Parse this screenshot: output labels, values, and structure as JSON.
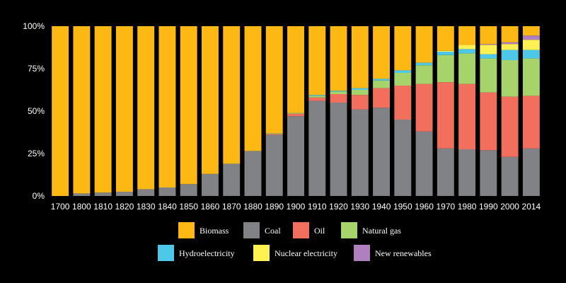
{
  "chart_data": {
    "type": "bar",
    "stacked": true,
    "categories": [
      "1700",
      "1800",
      "1810",
      "1820",
      "1830",
      "1840",
      "1850",
      "1860",
      "1870",
      "1880",
      "1890",
      "1900",
      "1910",
      "1920",
      "1930",
      "1940",
      "1950",
      "1960",
      "1970",
      "1980",
      "1990",
      "2000",
      "2014"
    ],
    "ylim": [
      0,
      100
    ],
    "yticks": [
      0,
      25,
      50,
      75,
      100
    ],
    "ytick_labels": [
      "0%",
      "25%",
      "50%",
      "75%",
      "100%"
    ],
    "legend_position": "bottom",
    "series": [
      {
        "name": "Coal",
        "color": "#808285",
        "values": [
          0,
          1.5,
          2,
          2.5,
          4,
          5,
          7,
          13,
          19,
          26.5,
          36,
          47,
          56,
          55,
          51,
          52,
          45,
          38,
          28,
          27.5,
          27,
          23,
          28
        ]
      },
      {
        "name": "Oil",
        "color": "#F26E5D",
        "values": [
          0,
          0,
          0,
          0,
          0,
          0,
          0,
          0,
          0,
          0,
          0.5,
          1.5,
          2,
          5,
          8.5,
          11.5,
          20,
          28,
          39,
          38.5,
          34,
          35.5,
          31
        ]
      },
      {
        "name": "Natural gas",
        "color": "#A6D36A",
        "values": [
          0,
          0,
          0,
          0,
          0,
          0,
          0,
          0,
          0,
          0,
          0.5,
          0.5,
          1,
          1.5,
          3,
          4.5,
          7.5,
          11,
          16,
          18,
          20,
          21.5,
          22
        ]
      },
      {
        "name": "Hydroelectricity",
        "color": "#4DC8E8",
        "values": [
          0,
          0,
          0,
          0,
          0,
          0,
          0,
          0,
          0,
          0,
          0,
          0,
          0.5,
          0.5,
          1,
          1,
          1.5,
          1.5,
          2,
          2.5,
          2.5,
          6,
          5
        ]
      },
      {
        "name": "Nuclear electricity",
        "color": "#FFF151",
        "values": [
          0,
          0,
          0,
          0,
          0,
          0,
          0,
          0,
          0,
          0,
          0,
          0,
          0,
          0,
          0,
          0,
          0,
          0,
          0.5,
          2.5,
          5.5,
          3.5,
          6
        ]
      },
      {
        "name": "New renewables",
        "color": "#B07FBE",
        "values": [
          0,
          0,
          0,
          0,
          0,
          0,
          0,
          0,
          0,
          0,
          0,
          0,
          0,
          0,
          0,
          0,
          0,
          0,
          0,
          0,
          0.5,
          1,
          2.5
        ]
      },
      {
        "name": "Biomass",
        "color": "#FDB813",
        "values": [
          100,
          98.5,
          98,
          97.5,
          96,
          95,
          93,
          87,
          81,
          73.5,
          63,
          51,
          40.5,
          38,
          36.5,
          31,
          26,
          21.5,
          14.5,
          11,
          10.5,
          9.5,
          5.5
        ]
      }
    ],
    "legend": [
      {
        "name": "Biomass",
        "color": "#FDB813"
      },
      {
        "name": "Coal",
        "color": "#808285"
      },
      {
        "name": "Oil",
        "color": "#F26E5D"
      },
      {
        "name": "Natural gas",
        "color": "#A6D36A"
      },
      {
        "name": "Hydroelectricity",
        "color": "#4DC8E8"
      },
      {
        "name": "Nuclear electricity",
        "color": "#FFF151"
      },
      {
        "name": "New renewables",
        "color": "#B07FBE"
      }
    ]
  }
}
